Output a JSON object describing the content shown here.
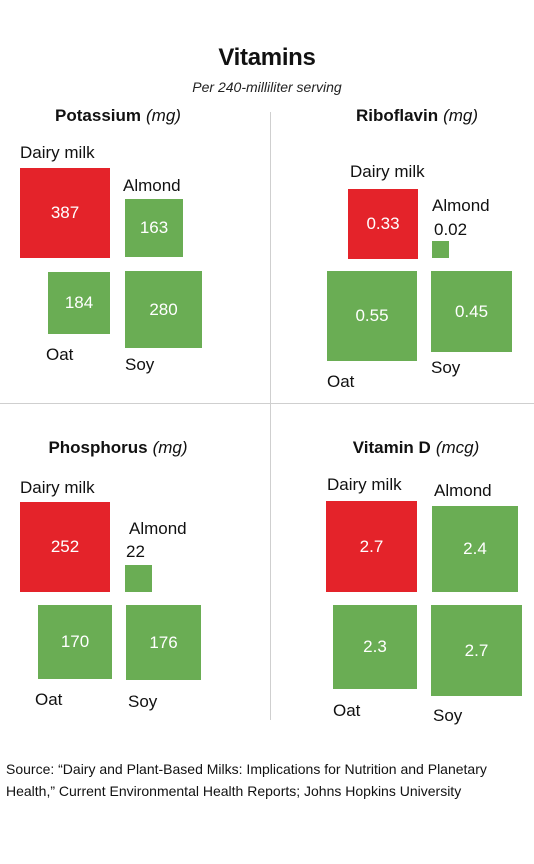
{
  "title": "Vitamins",
  "subtitle": "Per 240-milliliter serving",
  "source": "Source: “Dairy and Plant-Based Milks: Implications for Nutrition and Planetary Health,” Current Environmental Health Reports; Johns Hopkins University",
  "colors": {
    "dairy": "#e4232a",
    "plant": "#6aad54"
  },
  "chart_data": [
    {
      "type": "area-square",
      "title": "Potassium",
      "unit": "(mg)",
      "categories": [
        "Dairy milk",
        "Almond",
        "Oat",
        "Soy"
      ],
      "values": [
        387,
        163,
        184,
        280
      ],
      "value_labels": [
        "387",
        "163",
        "184",
        "280"
      ]
    },
    {
      "type": "area-square",
      "title": "Riboflavin",
      "unit": "(mg)",
      "categories": [
        "Dairy milk",
        "Almond",
        "Oat",
        "Soy"
      ],
      "values": [
        0.33,
        0.02,
        0.55,
        0.45
      ],
      "value_labels": [
        "0.33",
        "0.02",
        "0.55",
        "0.45"
      ]
    },
    {
      "type": "area-square",
      "title": "Phosphorus",
      "unit": "(mg)",
      "categories": [
        "Dairy milk",
        "Almond",
        "Oat",
        "Soy"
      ],
      "values": [
        252,
        22,
        170,
        176
      ],
      "value_labels": [
        "252",
        "22",
        "170",
        "176"
      ]
    },
    {
      "type": "area-square",
      "title": "Vitamin D",
      "unit": "(mcg)",
      "categories": [
        "Dairy milk",
        "Almond",
        "Oat",
        "Soy"
      ],
      "values": [
        2.7,
        2.4,
        2.3,
        2.7
      ],
      "value_labels": [
        "2.7",
        "2.4",
        "2.3",
        "2.7"
      ]
    }
  ]
}
